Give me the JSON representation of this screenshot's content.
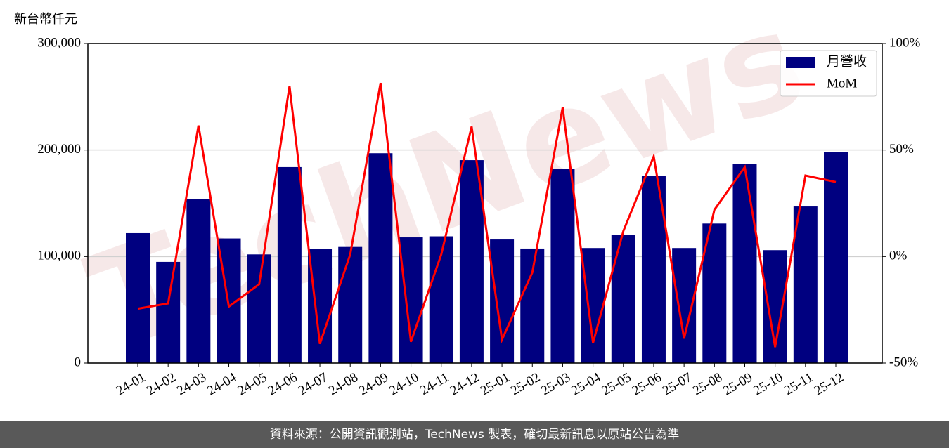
{
  "chart_data": {
    "type": "bar_line",
    "y_label": "新台幣仟元",
    "watermark": "TechNews",
    "categories": [
      "24-01",
      "24-02",
      "24-03",
      "24-04",
      "24-05",
      "24-06",
      "24-07",
      "24-08",
      "24-09",
      "24-10",
      "24-11",
      "24-12",
      "25-01",
      "25-02",
      "25-03",
      "25-04",
      "25-05",
      "25-06",
      "25-07",
      "25-08",
      "25-09",
      "25-10",
      "25-11",
      "25-12"
    ],
    "series": [
      {
        "name": "月營收",
        "type": "bar",
        "color": "#000080",
        "values": [
          122000,
          95000,
          154000,
          117000,
          102000,
          184000,
          107000,
          109000,
          197000,
          118000,
          119000,
          190500,
          116000,
          107500,
          182600,
          108000,
          120000,
          176000,
          108000,
          131000,
          186600,
          106000,
          147000,
          198000
        ]
      },
      {
        "name": "MoM",
        "type": "line",
        "color": "#ff0000",
        "axis": "y2",
        "values": [
          -24.5,
          -22,
          61.5,
          -23.5,
          -13,
          80,
          -41,
          1,
          81.5,
          -40,
          1,
          61,
          -39,
          -7.5,
          70,
          -40.5,
          12,
          47,
          -38.5,
          22,
          42,
          -42.5,
          38,
          35
        ]
      }
    ],
    "ylim": [
      0,
      300000
    ],
    "yticks": [
      0,
      {
        "value": 100000,
        "label": "100,000"
      },
      {
        "value": 200000,
        "label": "200,000"
      },
      {
        "value": 300000,
        "label": "300,000"
      }
    ],
    "y2lim": [
      -50,
      100
    ],
    "y2ticks": [
      {
        "value": -50,
        "label": "-50%"
      },
      {
        "value": 0,
        "label": "0%"
      },
      {
        "value": 50,
        "label": "50%"
      },
      {
        "value": 100,
        "label": "100%"
      }
    ],
    "grid": true,
    "legend": "upper right"
  },
  "footer": "資料來源：公開資訊觀測站，TechNews 製表，確切最新訊息以原站公告為準"
}
